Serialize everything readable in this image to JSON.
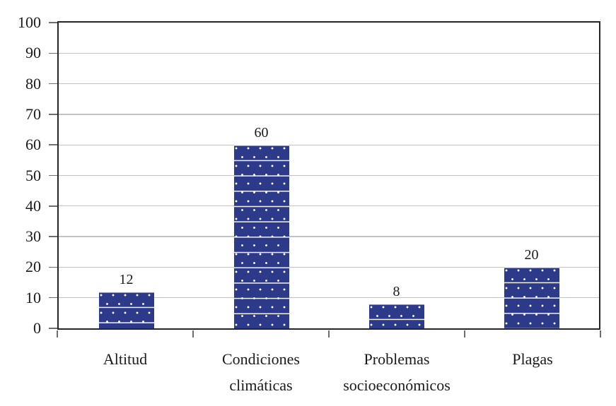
{
  "chart_data": {
    "type": "bar",
    "title": "",
    "categories": [
      "Altitud",
      "Condiciones climáticas",
      "Problemas socioeconómicos",
      "Plagas"
    ],
    "values": [
      12,
      60,
      8,
      20
    ],
    "data_labels": [
      "12",
      "60",
      "8",
      "20"
    ],
    "xlabel": "",
    "ylabel": "",
    "ylim": [
      0,
      100
    ],
    "y_ticks": [
      0,
      10,
      20,
      30,
      40,
      50,
      60,
      70,
      80,
      90,
      100
    ],
    "grid": true,
    "legend_position": "none",
    "bar_pattern": "white polka dots on navy with thin horizontal white seams",
    "colors": {
      "bar_fill": "#2D3A8A",
      "pattern_dot": "#FFFFFF",
      "gridline": "#C3C3C3",
      "axis_border": "#262626",
      "tick": "#6E6E6E",
      "text": "#1A1A1A",
      "background": "#FFFFFF"
    }
  }
}
